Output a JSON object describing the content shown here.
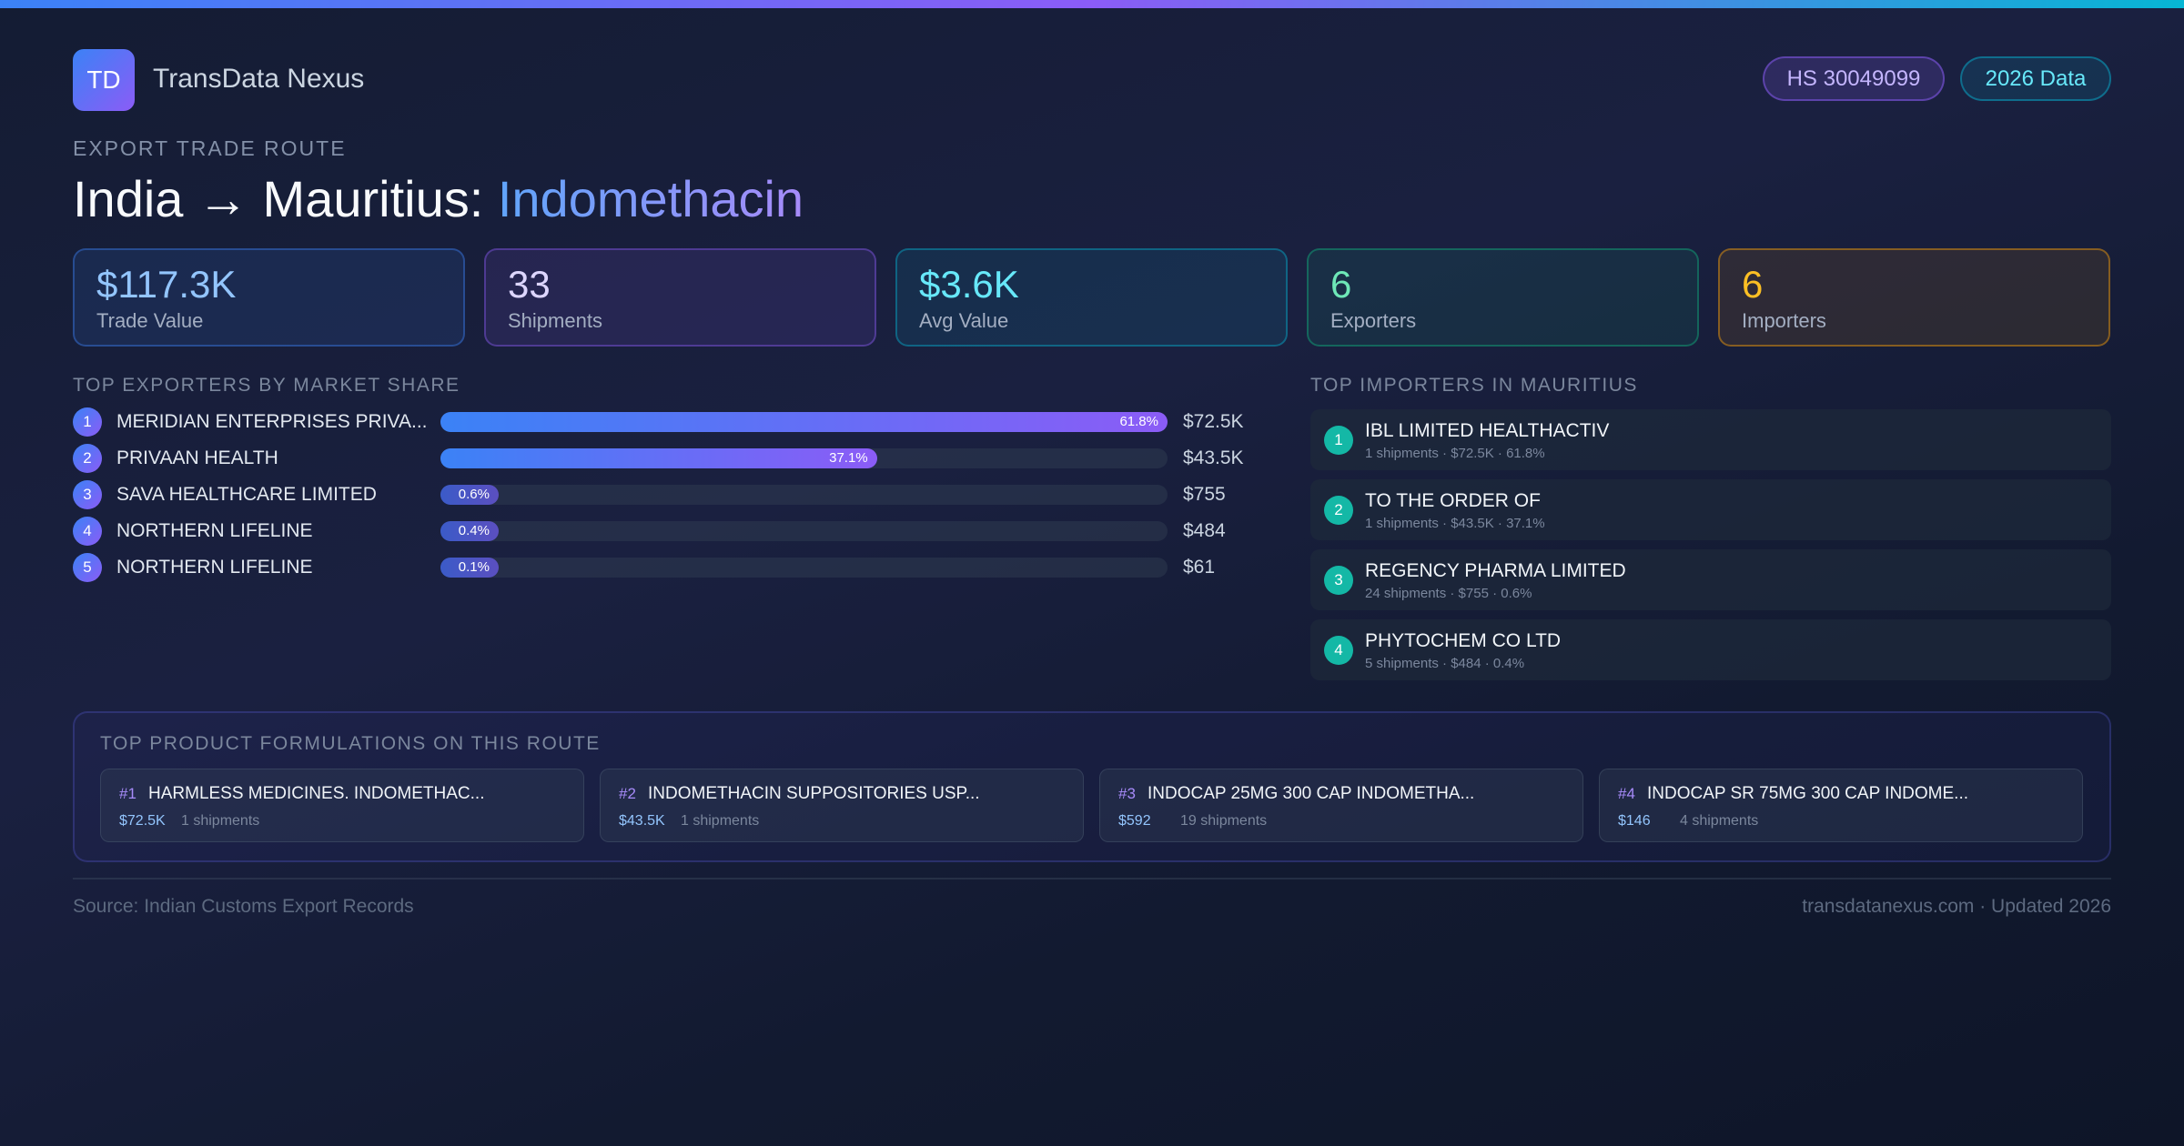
{
  "header": {
    "logo": "TD",
    "brand": "TransData Nexus",
    "badges": [
      "HS 30049099",
      "2026 Data"
    ]
  },
  "route": {
    "eyebrow": "EXPORT TRADE ROUTE",
    "title_prefix": "India → Mauritius:",
    "title_product": "Indomethacin"
  },
  "stats": [
    {
      "value": "$117.3K",
      "label": "Trade Value"
    },
    {
      "value": "33",
      "label": "Shipments"
    },
    {
      "value": "$3.6K",
      "label": "Avg Value"
    },
    {
      "value": "6",
      "label": "Exporters"
    },
    {
      "value": "6",
      "label": "Importers"
    }
  ],
  "exporters": {
    "heading": "TOP EXPORTERS BY MARKET SHARE",
    "items": [
      {
        "rank": 1,
        "name": "MERIDIAN ENTERPRISES PRIVA...",
        "share": 61.8,
        "share_label": "61.8%",
        "value": "$72.5K"
      },
      {
        "rank": 2,
        "name": "PRIVAAN HEALTH",
        "share": 37.1,
        "share_label": "37.1%",
        "value": "$43.5K"
      },
      {
        "rank": 3,
        "name": "SAVA HEALTHCARE LIMITED",
        "share": 0.6,
        "share_label": "0.6%",
        "value": "$755"
      },
      {
        "rank": 4,
        "name": "NORTHERN LIFELINE",
        "share": 0.4,
        "share_label": "0.4%",
        "value": "$484"
      },
      {
        "rank": 5,
        "name": "NORTHERN LIFELINE",
        "share": 0.1,
        "share_label": "0.1%",
        "value": "$61"
      }
    ]
  },
  "importers": {
    "heading": "TOP IMPORTERS IN MAURITIUS",
    "items": [
      {
        "rank": 1,
        "name": "IBL LIMITED HEALTHACTIV",
        "detail": "1 shipments · $72.5K · 61.8%"
      },
      {
        "rank": 2,
        "name": "TO THE ORDER OF",
        "detail": "1 shipments · $43.5K · 37.1%"
      },
      {
        "rank": 3,
        "name": "REGENCY PHARMA LIMITED",
        "detail": "24 shipments · $755 · 0.6%"
      },
      {
        "rank": 4,
        "name": "PHYTOCHEM CO LTD",
        "detail": "5 shipments · $484 · 0.4%"
      }
    ]
  },
  "formulations": {
    "heading": "TOP PRODUCT FORMULATIONS ON THIS ROUTE",
    "items": [
      {
        "rank": "#1",
        "name": "HARMLESS MEDICINES. INDOMETHAC...",
        "value": "$72.5K",
        "shipments": "1 shipments"
      },
      {
        "rank": "#2",
        "name": "INDOMETHACIN SUPPOSITORIES USP...",
        "value": "$43.5K",
        "shipments": "1 shipments"
      },
      {
        "rank": "#3",
        "name": "INDOCAP 25MG 300 CAP INDOMETHA...",
        "value": "$592",
        "shipments": "19 shipments"
      },
      {
        "rank": "#4",
        "name": "INDOCAP SR 75MG 300 CAP INDOME...",
        "value": "$146",
        "shipments": "4 shipments"
      }
    ]
  },
  "footer": {
    "source": "Source: Indian Customs Export Records",
    "site": "transdatanexus.com · Updated 2026"
  }
}
